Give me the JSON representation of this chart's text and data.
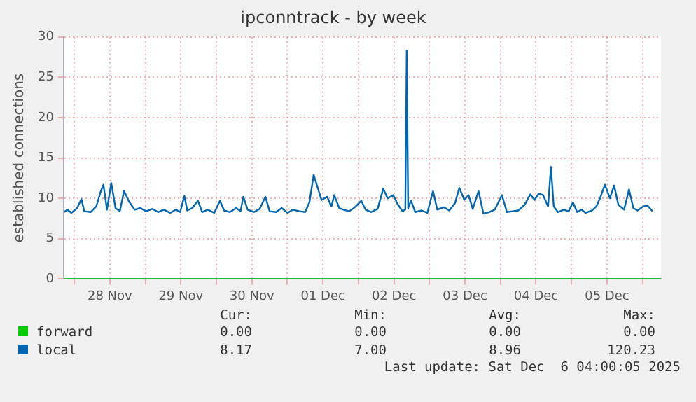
{
  "chart_data": {
    "type": "line",
    "title": "ipconntrack - by week",
    "ylabel": "established connections",
    "xlim": [
      "2025-11-27T20:24",
      "2025-12-06T06:14"
    ],
    "xticks": [
      {
        "value": "2025-11-28T00:00",
        "label": null
      },
      {
        "value": "2025-11-28T12:00",
        "label": "28 Nov"
      },
      {
        "value": "2025-11-29T00:00",
        "label": null
      },
      {
        "value": "2025-11-29T12:00",
        "label": "29 Nov"
      },
      {
        "value": "2025-11-30T00:00",
        "label": null
      },
      {
        "value": "2025-11-30T12:00",
        "label": "30 Nov"
      },
      {
        "value": "2025-12-01T00:00",
        "label": null
      },
      {
        "value": "2025-12-01T12:00",
        "label": "01 Dec"
      },
      {
        "value": "2025-12-02T00:00",
        "label": null
      },
      {
        "value": "2025-12-02T12:00",
        "label": "02 Dec"
      },
      {
        "value": "2025-12-03T00:00",
        "label": null
      },
      {
        "value": "2025-12-03T12:00",
        "label": "03 Dec"
      },
      {
        "value": "2025-12-04T00:00",
        "label": null
      },
      {
        "value": "2025-12-04T12:00",
        "label": "04 Dec"
      },
      {
        "value": "2025-12-05T00:00",
        "label": null
      },
      {
        "value": "2025-12-05T12:00",
        "label": "05 Dec"
      },
      {
        "value": "2025-12-06T00:00",
        "label": null
      }
    ],
    "ylim": [
      0,
      30
    ],
    "yticks": [
      0,
      5,
      10,
      15,
      20,
      25,
      30
    ],
    "grid": true,
    "legend": "bottom",
    "marker": "none",
    "line_style": "solid",
    "series": [
      {
        "name": "forward",
        "color": "#00cc00",
        "x": [
          "2025-11-27T20:24",
          "2025-12-06T06:14"
        ],
        "values": [
          0,
          0
        ]
      },
      {
        "name": "local",
        "color": "#0066b3",
        "x": [
          "2025-11-27T20:38",
          "2025-11-27T21:36",
          "2025-11-27T23:02",
          "2025-11-28T00:58",
          "2025-11-28T02:24",
          "2025-11-28T03:22",
          "2025-11-28T05:31",
          "2025-11-28T07:26",
          "2025-11-28T08:53",
          "2025-11-28T09:50",
          "2025-11-28T11:02",
          "2025-11-28T12:29",
          "2025-11-28T13:55",
          "2025-11-28T15:22",
          "2025-11-28T16:48",
          "2025-11-28T18:29",
          "2025-11-28T20:24",
          "2025-11-28T22:19",
          "2025-11-29T00:14",
          "2025-11-29T02:24",
          "2025-11-29T04:19",
          "2025-11-29T06:14",
          "2025-11-29T08:24",
          "2025-11-29T10:19",
          "2025-11-29T11:46",
          "2025-11-29T13:12",
          "2025-11-29T14:10",
          "2025-11-29T15:50",
          "2025-11-29T17:46",
          "2025-11-29T19:12",
          "2025-11-29T21:07",
          "2025-11-29T23:17",
          "2025-11-30T01:12",
          "2025-11-30T02:38",
          "2025-11-30T04:34",
          "2025-11-30T06:43",
          "2025-11-30T08:10",
          "2025-11-30T09:07",
          "2025-11-30T10:34",
          "2025-11-30T12:43",
          "2025-11-30T14:38",
          "2025-11-30T16:34",
          "2025-11-30T18:00",
          "2025-11-30T20:10",
          "2025-11-30T22:05",
          "2025-12-01T00:00",
          "2025-12-01T01:55",
          "2025-12-01T04:05",
          "2025-12-01T06:00",
          "2025-12-01T07:26",
          "2025-12-01T08:53",
          "2025-12-01T10:05",
          "2025-12-01T11:31",
          "2025-12-01T13:26",
          "2025-12-01T14:53",
          "2025-12-01T15:50",
          "2025-12-01T17:31",
          "2025-12-01T18:58",
          "2025-12-01T20:53",
          "2025-12-01T22:48",
          "2025-12-02T00:58",
          "2025-12-02T02:24",
          "2025-12-02T04:19",
          "2025-12-02T06:29",
          "2025-12-02T08:24",
          "2025-12-02T09:50",
          "2025-12-02T11:46",
          "2025-12-02T13:12",
          "2025-12-02T14:53",
          "2025-12-02T15:50",
          "2025-12-02T16:19",
          "2025-12-02T16:48",
          "2025-12-02T17:46",
          "2025-12-02T19:12",
          "2025-12-02T21:22",
          "2025-12-02T23:17",
          "2025-12-03T01:12",
          "2025-12-03T02:38",
          "2025-12-03T04:48",
          "2025-12-03T06:43",
          "2025-12-03T08:38",
          "2025-12-03T10:05",
          "2025-12-03T11:46",
          "2025-12-03T13:12",
          "2025-12-03T14:38",
          "2025-12-03T16:34",
          "2025-12-03T18:14",
          "2025-12-03T20:10",
          "2025-12-03T22:05",
          "2025-12-04T00:29",
          "2025-12-04T02:10",
          "2025-12-04T04:05",
          "2025-12-04T06:00",
          "2025-12-04T08:10",
          "2025-12-04T10:05",
          "2025-12-04T11:31",
          "2025-12-04T12:58",
          "2025-12-04T14:24",
          "2025-12-04T16:05",
          "2025-12-04T17:02",
          "2025-12-04T18:00",
          "2025-12-04T19:26",
          "2025-12-04T21:22",
          "2025-12-04T23:02",
          "2025-12-05T00:29",
          "2025-12-05T01:55",
          "2025-12-05T03:22",
          "2025-12-05T04:48",
          "2025-12-05T06:58",
          "2025-12-05T08:24",
          "2025-12-05T09:50",
          "2025-12-05T11:17",
          "2025-12-05T12:58",
          "2025-12-05T14:24",
          "2025-12-05T15:50",
          "2025-12-05T17:46",
          "2025-12-05T19:26",
          "2025-12-05T20:53",
          "2025-12-05T22:19",
          "2025-12-06T00:14",
          "2025-12-06T01:41",
          "2025-12-06T03:22"
        ],
        "values": [
          8.3,
          8.6,
          8.2,
          8.8,
          9.9,
          8.4,
          8.3,
          9.0,
          10.8,
          11.7,
          8.6,
          11.9,
          8.8,
          8.4,
          10.9,
          9.6,
          8.6,
          8.8,
          8.4,
          8.7,
          8.3,
          8.6,
          8.2,
          8.6,
          8.3,
          10.3,
          8.5,
          8.8,
          9.7,
          8.3,
          8.6,
          8.2,
          9.7,
          8.5,
          8.3,
          8.8,
          8.4,
          10.2,
          8.6,
          8.3,
          8.7,
          10.2,
          8.4,
          8.3,
          8.8,
          8.2,
          8.6,
          8.4,
          8.3,
          9.5,
          12.9,
          11.5,
          9.8,
          10.2,
          9.0,
          10.4,
          8.8,
          8.6,
          8.4,
          8.9,
          9.7,
          8.6,
          8.3,
          8.7,
          11.2,
          10.0,
          10.4,
          9.3,
          8.4,
          8.6,
          28.3,
          8.8,
          9.7,
          8.3,
          8.5,
          8.2,
          10.9,
          8.6,
          8.9,
          8.5,
          9.4,
          11.3,
          9.8,
          10.4,
          8.7,
          10.9,
          8.1,
          8.3,
          8.6,
          10.4,
          8.3,
          8.4,
          8.5,
          9.2,
          10.5,
          9.8,
          10.6,
          10.4,
          9.0,
          13.9,
          9.0,
          8.3,
          8.6,
          8.4,
          9.5,
          8.3,
          8.6,
          8.2,
          8.5,
          9.0,
          10.2,
          11.7,
          10.0,
          11.6,
          9.2,
          8.6,
          11.1,
          8.8,
          8.5,
          9.0,
          9.1,
          8.4
        ]
      }
    ],
    "annotations": [
      "Cur:",
      "Min:",
      "Avg:",
      "Max:",
      "0.00",
      "0.00",
      "0.00",
      "0.00",
      "8.17",
      "7.00",
      "8.96",
      "120.23",
      "Last update: Sat Dec  6 04:00:05 2025"
    ]
  }
}
